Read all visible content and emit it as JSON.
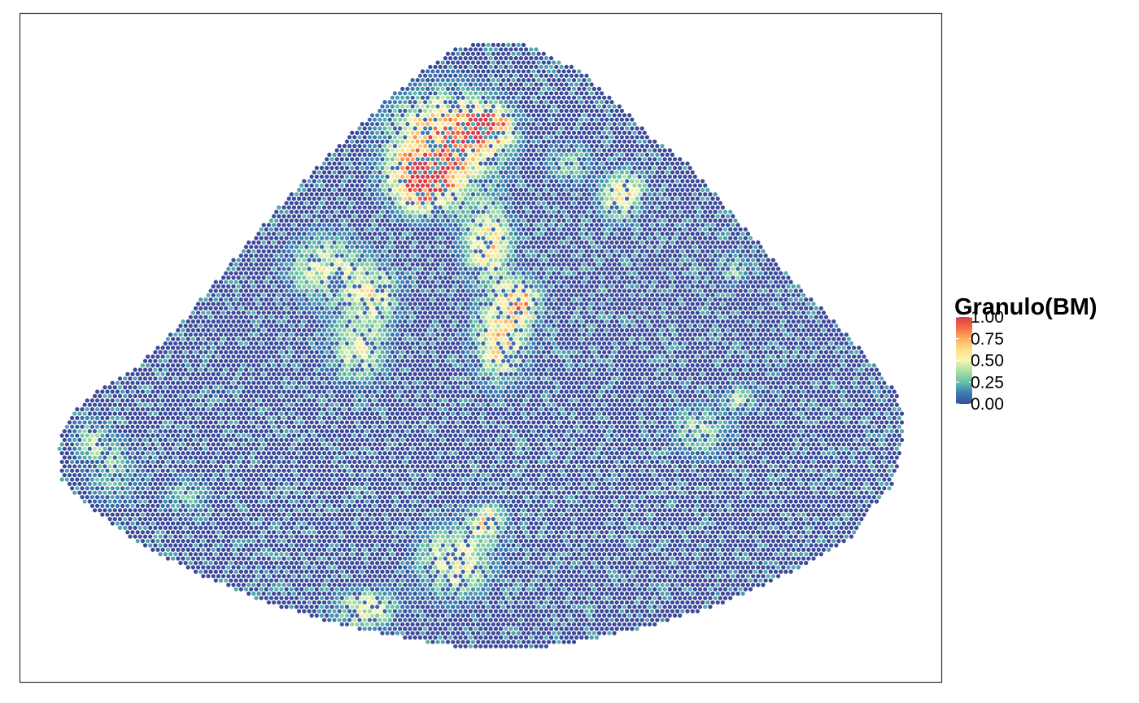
{
  "chart_data": {
    "type": "scatter",
    "title": "",
    "xlabel": "",
    "ylabel": "",
    "axes_visible": false,
    "grid": false,
    "panel_border": true,
    "description_of_marks": "hexagonally-packed spatial spots forming a bell / mountain shaped tissue section, each colored by value",
    "color_variable": "Granulo(BM)",
    "color_scale": {
      "name": "Spectral (reversed)",
      "range": [
        0,
        1
      ],
      "stops": [
        {
          "value": 0.0,
          "color": "#3B4A9A"
        },
        {
          "value": 0.125,
          "color": "#3A7DB4"
        },
        {
          "value": 0.25,
          "color": "#66C1A5"
        },
        {
          "value": 0.375,
          "color": "#ABDDA4"
        },
        {
          "value": 0.5,
          "color": "#F4F6B0"
        },
        {
          "value": 0.625,
          "color": "#FEE08B"
        },
        {
          "value": 0.75,
          "color": "#FDAE61"
        },
        {
          "value": 0.875,
          "color": "#F46D43"
        },
        {
          "value": 1.0,
          "color": "#D53E4F"
        }
      ]
    },
    "legend": {
      "title": "Granulo(BM)",
      "position": "right",
      "ticks": [
        {
          "value": 0.0,
          "label": "0.00"
        },
        {
          "value": 0.25,
          "label": "0.25"
        },
        {
          "value": 0.5,
          "label": "0.50"
        },
        {
          "value": 0.75,
          "label": "0.75"
        },
        {
          "value": 1.0,
          "label": "1.00"
        }
      ]
    },
    "hotspots": [
      {
        "region": "upper-left lobe",
        "value": 0.8
      },
      {
        "region": "left-center",
        "value": 0.45
      },
      {
        "region": "center vertical band",
        "value": 0.6
      },
      {
        "region": "right-center",
        "value": 0.35
      },
      {
        "region": "lower-center",
        "value": 0.5
      },
      {
        "region": "far-left edge",
        "value": 0.3
      },
      {
        "region": "upper-right",
        "value": 0.35
      }
    ]
  }
}
